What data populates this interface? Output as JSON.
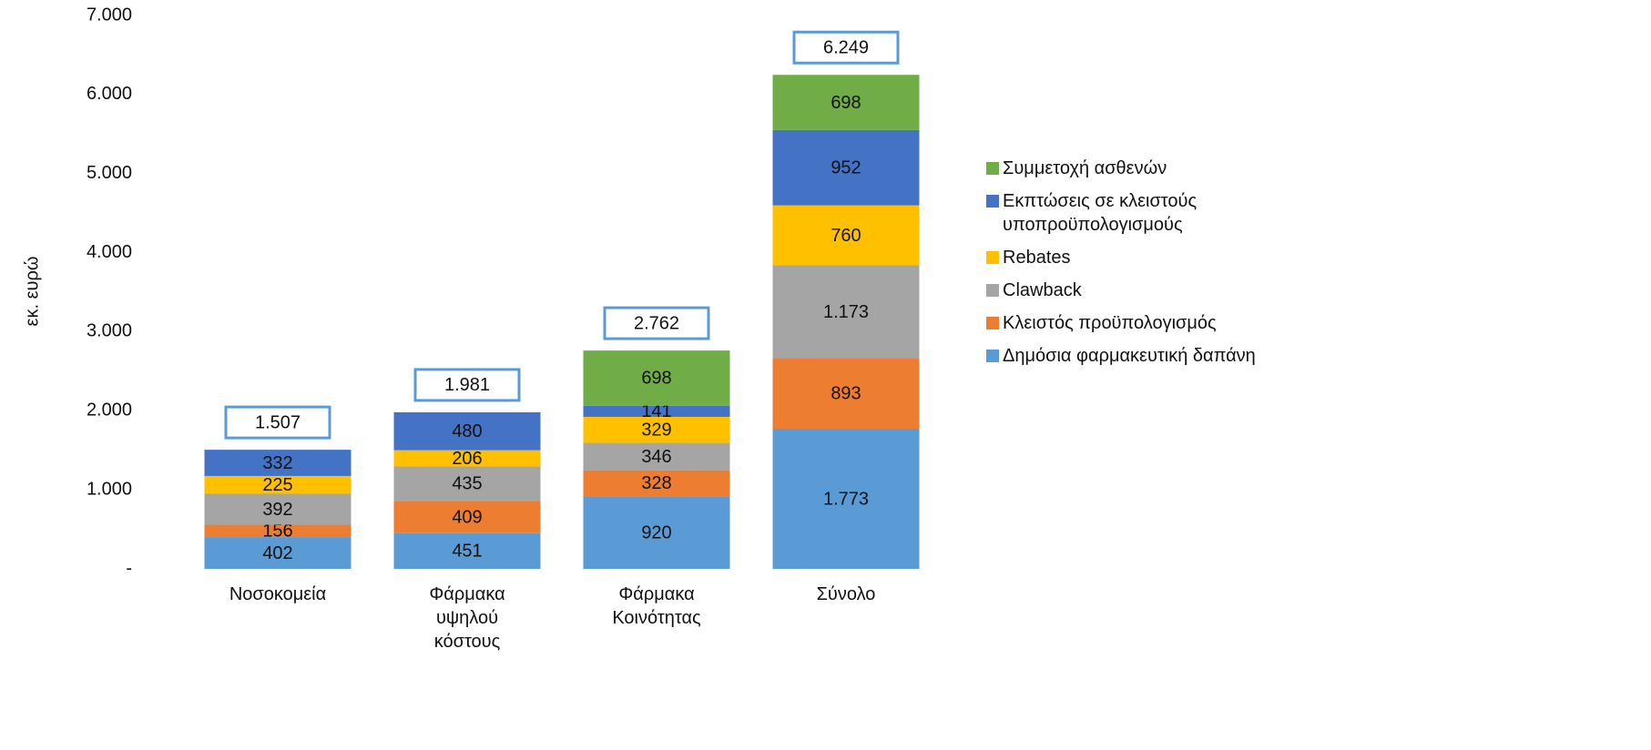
{
  "chart_data": {
    "type": "stacked-bar",
    "y_label": "εκ. ευρώ",
    "categories": [
      "Νοσοκομεία",
      "Φάρμακα υψηλού κόστους",
      "Φάρμακα Κοινότητας",
      "Σύνολο"
    ],
    "series": [
      {
        "name": "Δημόσια φαρμακευτική δαπάνη",
        "color": "#5b9bd5",
        "values": [
          402,
          451,
          920,
          1773
        ],
        "value_labels": [
          "402",
          "451",
          "920",
          "1.773"
        ]
      },
      {
        "name": "Κλειστός προϋπολογισμός",
        "color": "#ed7d31",
        "values": [
          156,
          409,
          328,
          893
        ]
      },
      {
        "name": "Clawback",
        "color": "#a5a5a5",
        "values": [
          392,
          435,
          346,
          1173
        ],
        "value_labels": [
          "392",
          "435",
          "346",
          "1.173"
        ]
      },
      {
        "name": "Rebates",
        "color": "#ffc000",
        "values": [
          225,
          206,
          329,
          760
        ]
      },
      {
        "name": "Εκπτώσεις σε κλειστούς υποπροϋπολογισμούς",
        "color": "#4472c4",
        "values": [
          332,
          480,
          141,
          952
        ]
      },
      {
        "name": "Συμμετοχή ασθενών",
        "color": "#70ad47",
        "values": [
          null,
          null,
          698,
          698
        ]
      }
    ],
    "totals": {
      "values": [
        1507,
        1981,
        2762,
        6249
      ],
      "value_labels": [
        "1.507",
        "1.981",
        "2.762",
        "6.249"
      ],
      "color": "#5b9bd5"
    },
    "ylim": [
      0,
      7000
    ],
    "yticks": [
      {
        "value": 0,
        "label": "-"
      },
      {
        "value": 1000,
        "label": "1.000"
      },
      {
        "value": 2000,
        "label": "2.000"
      },
      {
        "value": 3000,
        "label": "3.000"
      },
      {
        "value": 4000,
        "label": "4.000"
      },
      {
        "value": 5000,
        "label": "5.000"
      },
      {
        "value": 6000,
        "label": "6.000"
      },
      {
        "value": 7000,
        "label": "7.000"
      }
    ],
    "grid": false,
    "legend": "right"
  }
}
